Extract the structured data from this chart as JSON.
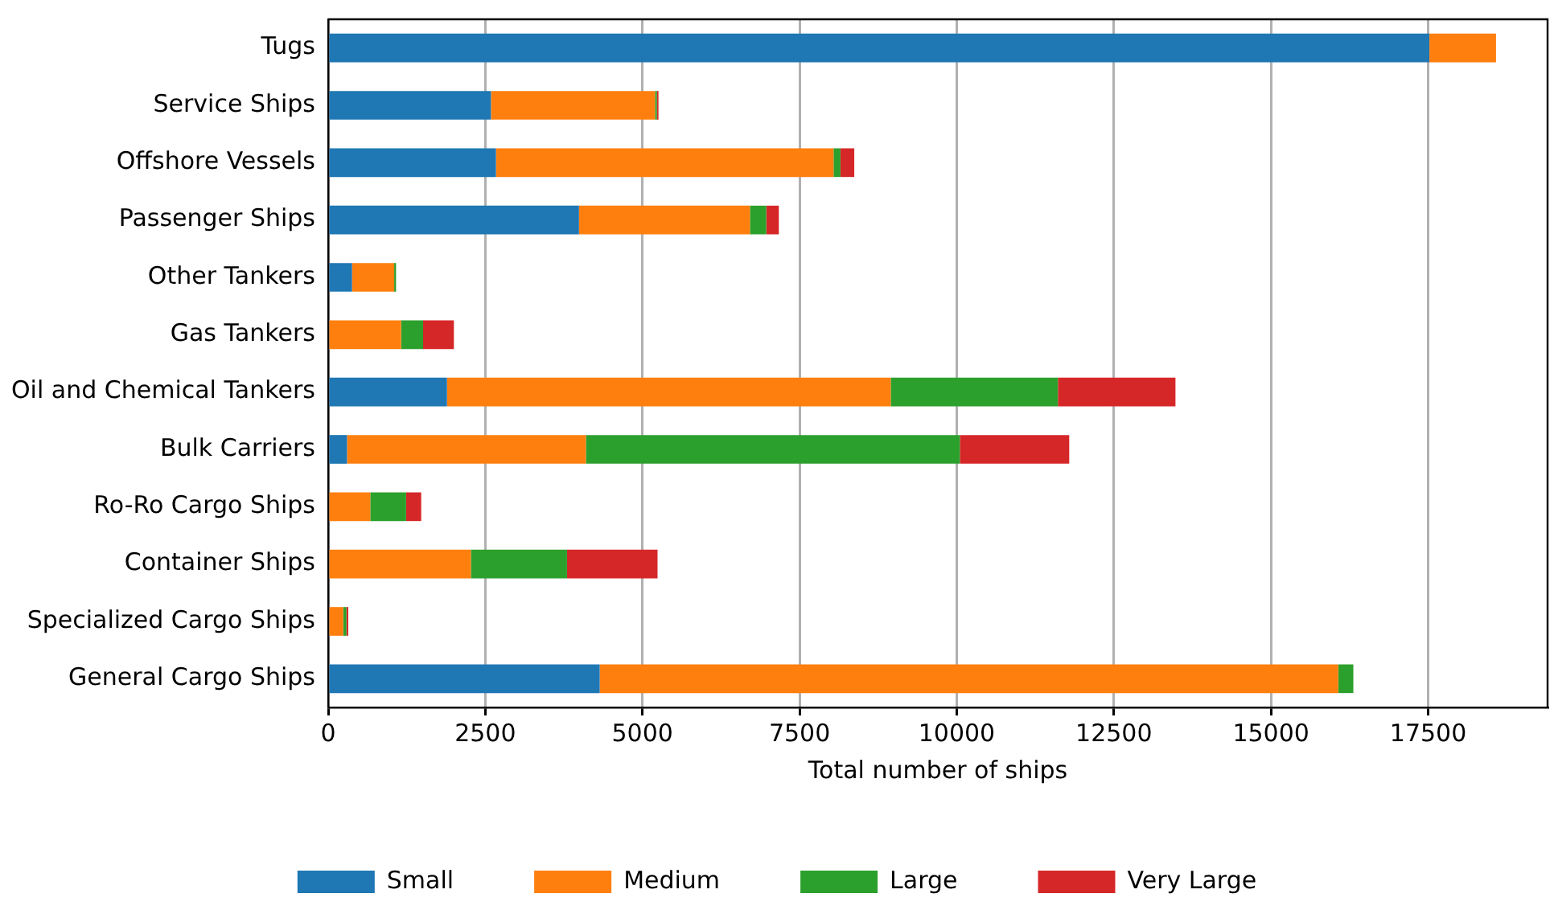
{
  "chart_data": {
    "type": "bar",
    "orientation": "horizontal",
    "stacked": true,
    "xlabel": "Total number of ships",
    "categories": [
      "Tugs",
      "Service Ships",
      "Offshore Vessels",
      "Passenger Ships",
      "Other Tankers",
      "Gas Tankers",
      "Oil and Chemical Tankers",
      "Bulk Carriers",
      "Ro-Ro Cargo Ships",
      "Container Ships",
      "Specialized Cargo Ships",
      "General Cargo Ships"
    ],
    "series": [
      {
        "name": "Small",
        "color": "#1f77b4",
        "values": [
          17520,
          2590,
          2670,
          3990,
          380,
          0,
          1890,
          300,
          0,
          0,
          0,
          4320
        ]
      },
      {
        "name": "Medium",
        "color": "#ff7f0e",
        "values": [
          1060,
          2610,
          5370,
          2720,
          670,
          1160,
          7060,
          3800,
          670,
          2270,
          240,
          11750
        ]
      },
      {
        "name": "Large",
        "color": "#2ca02c",
        "values": [
          0,
          30,
          110,
          260,
          30,
          350,
          2660,
          5950,
          570,
          1530,
          50,
          240
        ]
      },
      {
        "name": "Very Large",
        "color": "#d62728",
        "values": [
          0,
          25,
          220,
          200,
          0,
          490,
          1870,
          1740,
          240,
          1440,
          30,
          0
        ]
      }
    ],
    "xlim": [
      0,
      19400
    ],
    "xticks": [
      0,
      2500,
      5000,
      7500,
      10000,
      12500,
      15000,
      17500
    ],
    "grid": "x",
    "legend": "bottom"
  }
}
